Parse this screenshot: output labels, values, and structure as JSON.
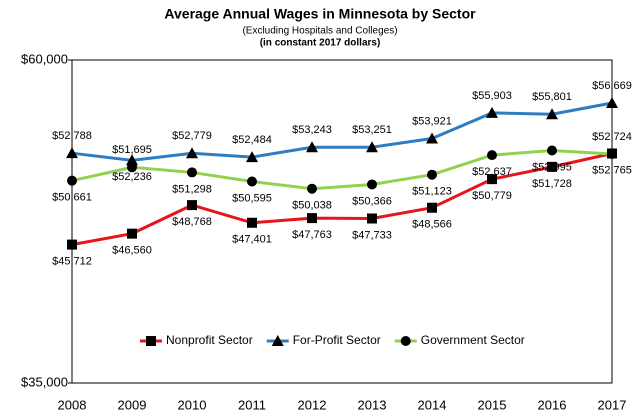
{
  "chart_data": {
    "type": "line",
    "title": "Average Annual Wages in Minnesota by Sector",
    "subtitle": "(Excluding Hospitals and Colleges)",
    "subtitle2": "(in constant 2017 dollars)",
    "categories": [
      "2008",
      "2009",
      "2010",
      "2011",
      "2012",
      "2013",
      "2014",
      "2015",
      "2016",
      "2017"
    ],
    "ylim": [
      35000,
      60000
    ],
    "yticks": [
      {
        "value": 35000,
        "label": "$35,000"
      },
      {
        "value": 60000,
        "label": "$60,000"
      }
    ],
    "legend": "bottom",
    "series": [
      {
        "name": "Nonprofit Sector",
        "color": "#e8141c",
        "marker": "square",
        "values": [
          45712,
          46560,
          48768,
          47401,
          47763,
          47733,
          48566,
          50779,
          51728,
          52765
        ],
        "value_labels": [
          "$45,712",
          "$46,560",
          "$48,768",
          "$47,401",
          "$47,763",
          "$47,733",
          "$48,566",
          "$50,779",
          "$51,728",
          "$52,765"
        ]
      },
      {
        "name": "For-Profit Sector",
        "color": "#2e7dc3",
        "marker": "triangle",
        "values": [
          52788,
          52236,
          52779,
          52484,
          53243,
          53251,
          53921,
          55903,
          55801,
          56669
        ],
        "value_labels": [
          "$52,788",
          "$52,236",
          "$52,779",
          "$52,484",
          "$53,243",
          "$53,251",
          "$53,921",
          "$55,903",
          "$55,801",
          "$56,669"
        ]
      },
      {
        "name": "Government Sector",
        "color": "#92d050",
        "marker": "circle",
        "values": [
          50661,
          51695,
          51298,
          50595,
          50038,
          50366,
          51123,
          52637,
          52995,
          52724
        ],
        "value_labels": [
          "$50,661",
          "$51,695",
          "$51,298",
          "$50,595",
          "$50,038",
          "$50,366",
          "$51,123",
          "$52,637",
          "$52,995",
          "$52,724"
        ]
      }
    ]
  }
}
